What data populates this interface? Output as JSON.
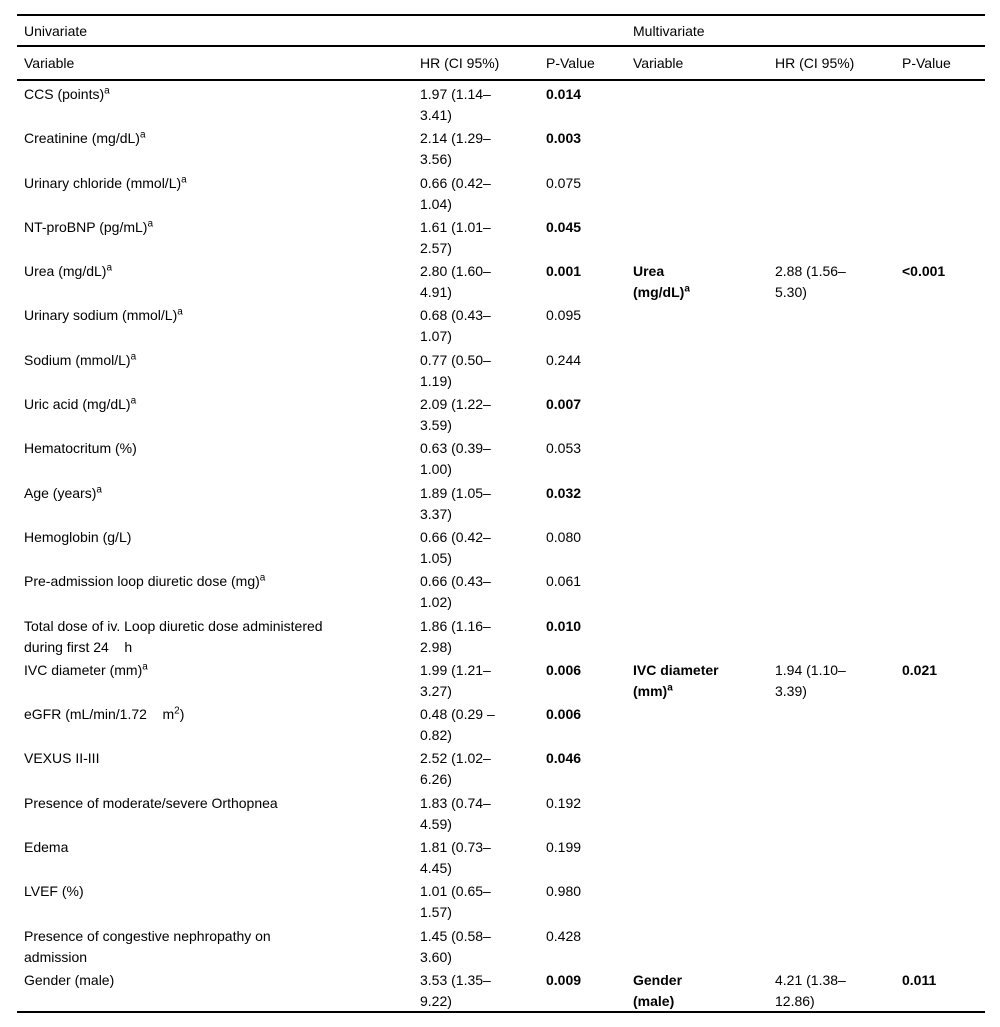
{
  "table": {
    "group_headers": [
      {
        "label": "Univariate"
      },
      {
        "label": "Multivariate"
      }
    ],
    "column_headers": [
      "Variable",
      "HR (CI 95%)",
      "P-Value",
      "Variable",
      "HR (CI 95%)",
      "P-Value"
    ],
    "rows": [
      {
        "uni": {
          "variable": "CCS (points)^a",
          "hr": "1.97 (1.14–\n3.41)",
          "p": "0.014",
          "p_bold": true
        },
        "multi": null
      },
      {
        "uni": {
          "variable": "Creatinine (mg/dL)^a",
          "hr": "2.14 (1.29–\n3.56)",
          "p": "0.003",
          "p_bold": true
        },
        "multi": null
      },
      {
        "uni": {
          "variable": "Urinary chloride (mmol/L)^a",
          "hr": "0.66 (0.42–\n1.04)",
          "p": "0.075",
          "p_bold": false
        },
        "multi": null
      },
      {
        "uni": {
          "variable": "NT-proBNP (pg/mL)^a",
          "hr": "1.61 (1.01–\n2.57)",
          "p": "0.045",
          "p_bold": true
        },
        "multi": null
      },
      {
        "uni": {
          "variable": "Urea (mg/dL)^a",
          "hr": "2.80 (1.60–\n4.91)",
          "p": "0.001",
          "p_bold": true
        },
        "multi": {
          "variable": "Urea\n(mg/dL)^a",
          "hr": "2.88 (1.56–\n5.30)",
          "p": "<0.001",
          "p_bold": true
        }
      },
      {
        "uni": {
          "variable": "Urinary sodium (mmol/L)^a",
          "hr": "0.68 (0.43–\n1.07)",
          "p": "0.095",
          "p_bold": false
        },
        "multi": null
      },
      {
        "uni": {
          "variable": "Sodium (mmol/L)^a",
          "hr": "0.77 (0.50–\n1.19)",
          "p": "0.244",
          "p_bold": false
        },
        "multi": null
      },
      {
        "uni": {
          "variable": "Uric acid (mg/dL)^a",
          "hr": "2.09 (1.22–\n3.59)",
          "p": "0.007",
          "p_bold": true
        },
        "multi": null
      },
      {
        "uni": {
          "variable": "Hematocritum (%)",
          "hr": "0.63 (0.39–\n1.00)",
          "p": "0.053",
          "p_bold": false
        },
        "multi": null
      },
      {
        "uni": {
          "variable": "Age (years)^a",
          "hr": "1.89 (1.05–\n3.37)",
          "p": "0.032",
          "p_bold": true
        },
        "multi": null
      },
      {
        "uni": {
          "variable": "Hemoglobin (g/L)",
          "hr": "0.66 (0.42–\n1.05)",
          "p": "0.080",
          "p_bold": false
        },
        "multi": null
      },
      {
        "uni": {
          "variable": "Pre-admission loop diuretic dose (mg)^a",
          "hr": "0.66 (0.43–\n1.02)",
          "p": "0.061",
          "p_bold": false
        },
        "multi": null
      },
      {
        "uni": {
          "variable": "Total dose of iv. Loop diuretic dose administered\nduring first 24    h",
          "hr": "1.86 (1.16–\n2.98)",
          "p": "0.010",
          "p_bold": true
        },
        "multi": null
      },
      {
        "uni": {
          "variable": "IVC diameter (mm)^a",
          "hr": "1.99 (1.21–\n3.27)",
          "p": "0.006",
          "p_bold": true
        },
        "multi": {
          "variable": "IVC diameter\n(mm)^a",
          "hr": "1.94 (1.10–\n3.39)",
          "p": "0.021",
          "p_bold": true
        }
      },
      {
        "uni": {
          "variable": "eGFR (mL/min/1.72    m^2)",
          "hr": "0.48 (0.29 –\n0.82)",
          "p": "0.006",
          "p_bold": true
        },
        "multi": null
      },
      {
        "uni": {
          "variable": "VEXUS II-III",
          "hr": "2.52 (1.02–\n6.26)",
          "p": "0.046",
          "p_bold": true
        },
        "multi": null
      },
      {
        "uni": {
          "variable": "Presence of moderate/severe Orthopnea",
          "hr": "1.83 (0.74–\n4.59)",
          "p": "0.192",
          "p_bold": false
        },
        "multi": null
      },
      {
        "uni": {
          "variable": "Edema",
          "hr": "1.81 (0.73–\n4.45)",
          "p": "0.199",
          "p_bold": false
        },
        "multi": null
      },
      {
        "uni": {
          "variable": "LVEF (%)",
          "hr": "1.01 (0.65–\n1.57)",
          "p": "0.980",
          "p_bold": false
        },
        "multi": null
      },
      {
        "uni": {
          "variable": "Presence of congestive nephropathy on\nadmission",
          "hr": "1.45 (0.58–\n3.60)",
          "p": "0.428",
          "p_bold": false
        },
        "multi": null
      },
      {
        "uni": {
          "variable": "Gender (male)",
          "hr": "3.53 (1.35–\n9.22)",
          "p": "0.009",
          "p_bold": true
        },
        "multi": {
          "variable": "Gender\n(male)",
          "hr": "4.21 (1.38–\n12.86)",
          "p": "0.011",
          "p_bold": true
        }
      }
    ]
  }
}
